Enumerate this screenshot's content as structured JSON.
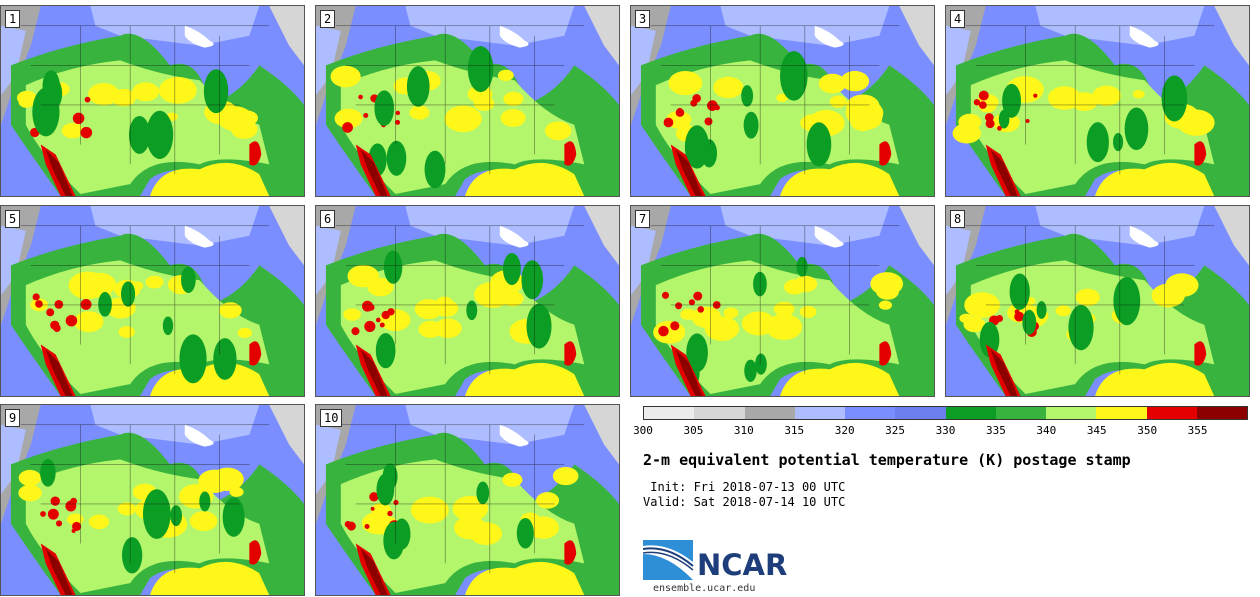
{
  "panels": [
    {
      "label": "1"
    },
    {
      "label": "2"
    },
    {
      "label": "3"
    },
    {
      "label": "4"
    },
    {
      "label": "5"
    },
    {
      "label": "6"
    },
    {
      "label": "7"
    },
    {
      "label": "8"
    },
    {
      "label": "9"
    },
    {
      "label": "10"
    }
  ],
  "colorbar": {
    "ticks": [
      "300",
      "305",
      "310",
      "315",
      "320",
      "325",
      "330",
      "335",
      "340",
      "345",
      "350",
      "355"
    ],
    "colors": [
      "#ececec",
      "#d6d6d6",
      "#a8a8a8",
      "#aebdff",
      "#7a8eff",
      "#6d7fef",
      "#0c9e24",
      "#38b43e",
      "#b3f56b",
      "#fff61a",
      "#e50000",
      "#8c0000"
    ]
  },
  "title": "2-m equivalent potential temperature (K) postage stamp",
  "init": " Init: Fri 2018-07-13 00 UTC",
  "valid": "Valid: Sat 2018-07-14 10 UTC",
  "logo_text": "NCAR",
  "url": "ensemble.ucar.edu"
}
